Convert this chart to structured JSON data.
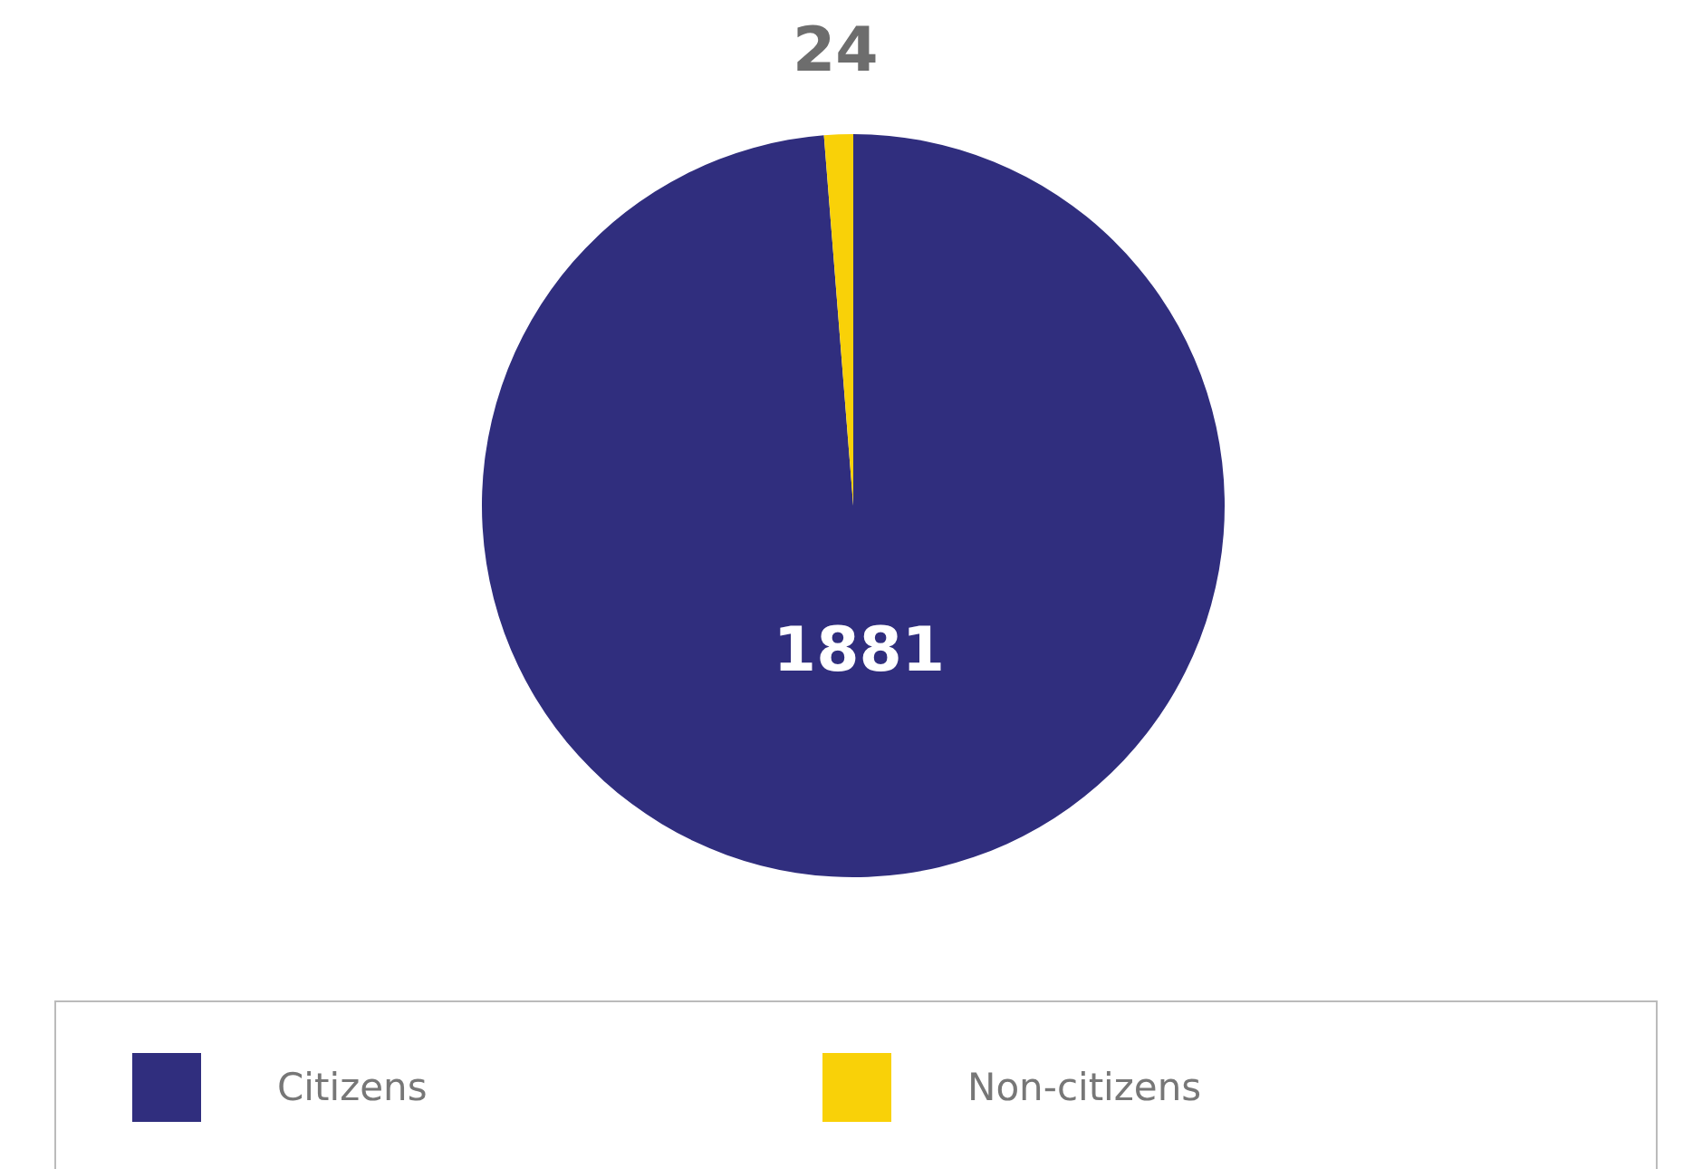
{
  "chart_data": {
    "type": "pie",
    "categories": [
      "Citizens",
      "Non-citizens"
    ],
    "values": [
      1881,
      24
    ],
    "colors": [
      "#302e7e",
      "#f9d108"
    ],
    "data_labels": true,
    "legend": "bottom"
  }
}
